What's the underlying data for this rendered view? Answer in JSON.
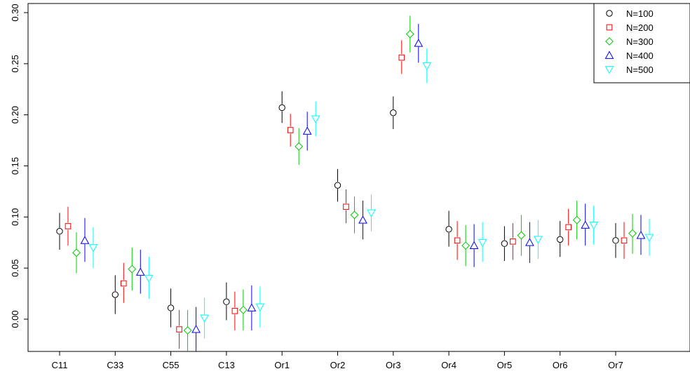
{
  "chart_data": {
    "type": "scatter",
    "title": "",
    "xlabel": "",
    "ylabel": "",
    "categories": [
      "C11",
      "C33",
      "C55",
      "C13",
      "Or1",
      "Or2",
      "Or3",
      "Or4",
      "Or5",
      "Or6",
      "Or7"
    ],
    "ylim": [
      -0.03,
      0.31
    ],
    "yticks": [
      0.0,
      0.05,
      0.1,
      0.15,
      0.2,
      0.25,
      0.3
    ],
    "ytick_labels": [
      "0.00",
      "0.05",
      "0.10",
      "0.15",
      "0.20",
      "0.25",
      "0.30"
    ],
    "legend_position": "top-right",
    "grid": false,
    "error_bars": true,
    "series": [
      {
        "name": "N=100",
        "color": "#000000",
        "marker": "circle",
        "values": [
          0.086,
          0.024,
          0.011,
          0.017,
          0.207,
          0.131,
          0.202,
          0.088,
          0.074,
          0.078,
          0.077
        ],
        "lower": [
          0.068,
          0.005,
          -0.008,
          -0.001,
          0.192,
          0.115,
          0.186,
          0.071,
          0.057,
          0.061,
          0.06
        ],
        "upper": [
          0.104,
          0.043,
          0.03,
          0.036,
          0.223,
          0.147,
          0.218,
          0.106,
          0.091,
          0.096,
          0.094
        ]
      },
      {
        "name": "N=200",
        "color": "#ff0000",
        "marker": "square",
        "values": [
          0.091,
          0.035,
          -0.01,
          0.008,
          0.185,
          0.11,
          0.256,
          0.077,
          0.076,
          0.09,
          0.077
        ],
        "lower": [
          0.072,
          0.016,
          -0.029,
          -0.011,
          0.169,
          0.094,
          0.24,
          0.058,
          0.058,
          0.072,
          0.059
        ],
        "upper": [
          0.11,
          0.055,
          0.009,
          0.027,
          0.201,
          0.127,
          0.273,
          0.096,
          0.094,
          0.108,
          0.095
        ]
      },
      {
        "name": "N=300",
        "color": "#00cc00",
        "marker": "diamond",
        "values": [
          0.065,
          0.049,
          -0.011,
          0.009,
          0.169,
          0.102,
          0.279,
          0.072,
          0.082,
          0.097,
          0.084
        ],
        "lower": [
          0.045,
          0.028,
          -0.031,
          -0.011,
          0.151,
          0.084,
          0.261,
          0.052,
          0.062,
          0.078,
          0.064
        ],
        "upper": [
          0.085,
          0.07,
          0.009,
          0.029,
          0.187,
          0.12,
          0.297,
          0.092,
          0.102,
          0.116,
          0.103
        ]
      },
      {
        "name": "N=400",
        "color": "#0000ff",
        "marker": "triangle-up",
        "values": [
          0.077,
          0.046,
          -0.01,
          0.011,
          0.184,
          0.097,
          0.27,
          0.072,
          0.075,
          0.092,
          0.082
        ],
        "lower": [
          0.056,
          0.025,
          -0.032,
          -0.011,
          0.165,
          0.078,
          0.251,
          0.051,
          0.055,
          0.072,
          0.063
        ],
        "upper": [
          0.099,
          0.068,
          0.012,
          0.033,
          0.203,
          0.116,
          0.289,
          0.093,
          0.095,
          0.113,
          0.102
        ]
      },
      {
        "name": "N=500",
        "color": "#00ffff",
        "marker": "triangle-down",
        "values": [
          0.07,
          0.04,
          0.001,
          0.012,
          0.196,
          0.104,
          0.248,
          0.075,
          0.078,
          0.092,
          0.08
        ],
        "lower": [
          0.05,
          0.02,
          -0.019,
          -0.008,
          0.179,
          0.086,
          0.231,
          0.056,
          0.059,
          0.073,
          0.062
        ],
        "upper": [
          0.09,
          0.061,
          0.021,
          0.032,
          0.213,
          0.122,
          0.265,
          0.095,
          0.097,
          0.111,
          0.098
        ]
      }
    ]
  }
}
